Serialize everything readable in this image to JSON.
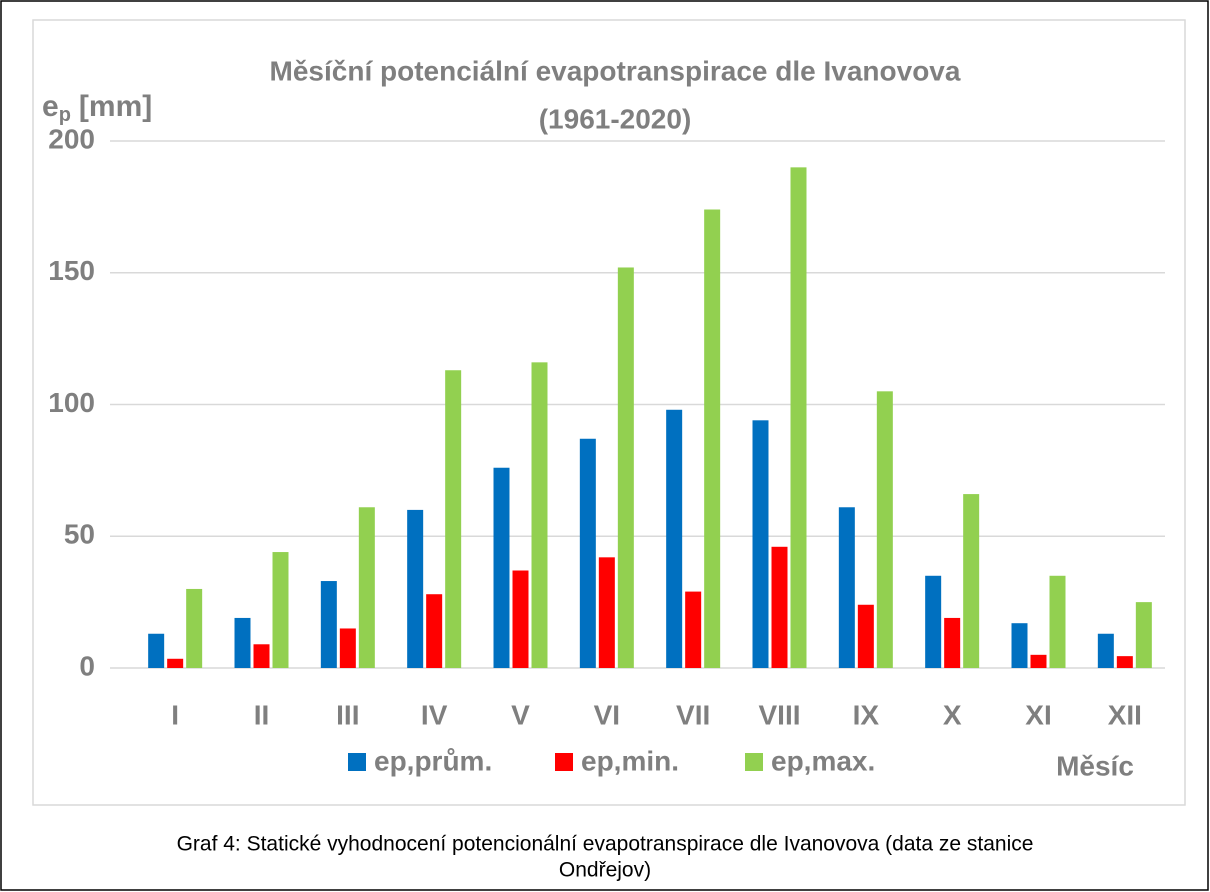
{
  "chart_data": {
    "type": "bar",
    "title": "Měsíční potenciální evapotranspirace dle Ivanovova",
    "subtitle": "(1961-2020)",
    "y_label_base": "e",
    "y_label_sub": "p",
    "y_label_unit": "[mm]",
    "x_label": "Měsíc",
    "categories": [
      "I",
      "II",
      "III",
      "IV",
      "V",
      "VI",
      "VII",
      "VIII",
      "IX",
      "X",
      "XI",
      "XII"
    ],
    "series": [
      {
        "name": "ep,prům.",
        "color": "#0070c0",
        "values": [
          13,
          19,
          33,
          60,
          76,
          87,
          98,
          94,
          61,
          35,
          17,
          13
        ]
      },
      {
        "name": "ep,min.",
        "color": "#ff0000",
        "values": [
          3.5,
          9,
          15,
          28,
          37,
          42,
          29,
          46,
          24,
          19,
          5,
          4.5
        ]
      },
      {
        "name": "ep,max.",
        "color": "#92d050",
        "values": [
          30,
          44,
          61,
          113,
          116,
          152,
          174,
          190,
          105,
          66,
          35,
          25
        ]
      }
    ],
    "ylim": [
      0,
      200
    ],
    "yticks": [
      0,
      50,
      100,
      150,
      200
    ],
    "grid": true,
    "legend": "bottom",
    "caption": [
      "Graf 4: Statické vyhodnocení potencionální evapotranspirace dle Ivanovova (data ze stanice",
      "Ondřejov)"
    ]
  }
}
